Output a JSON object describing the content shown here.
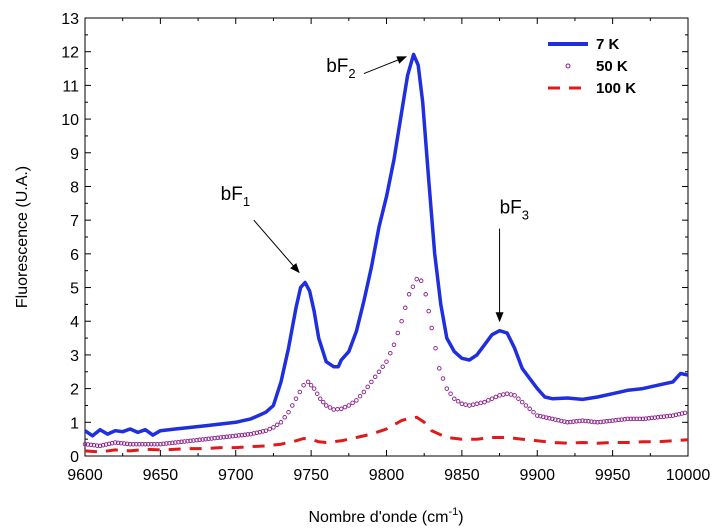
{
  "chart_data": {
    "type": "line",
    "title": "",
    "xlabel": "Nombre d'onde (cm",
    "xlabel_sup": "-1",
    "xlabel_end": ")",
    "ylabel": "Fluorescence (U.A.)",
    "xlim": [
      9600,
      10000
    ],
    "ylim": [
      0,
      13
    ],
    "x_ticks": [
      "9600",
      "9650",
      "9700",
      "9750",
      "9800",
      "9850",
      "9900",
      "9950",
      "10000"
    ],
    "y_ticks": [
      "0",
      "1",
      "2",
      "3",
      "4",
      "5",
      "6",
      "7",
      "8",
      "9",
      "10",
      "11",
      "12",
      "13"
    ],
    "grid": false,
    "legend_position": "top-right",
    "series": [
      {
        "name": "7 K",
        "style": "solid",
        "color": "#1f2fe0",
        "points": [
          [
            9600,
            0.75
          ],
          [
            9605,
            0.6
          ],
          [
            9610,
            0.78
          ],
          [
            9615,
            0.65
          ],
          [
            9620,
            0.75
          ],
          [
            9625,
            0.72
          ],
          [
            9630,
            0.8
          ],
          [
            9635,
            0.7
          ],
          [
            9640,
            0.78
          ],
          [
            9645,
            0.62
          ],
          [
            9650,
            0.75
          ],
          [
            9660,
            0.8
          ],
          [
            9670,
            0.85
          ],
          [
            9680,
            0.9
          ],
          [
            9690,
            0.95
          ],
          [
            9700,
            1.0
          ],
          [
            9705,
            1.05
          ],
          [
            9710,
            1.1
          ],
          [
            9715,
            1.2
          ],
          [
            9720,
            1.3
          ],
          [
            9725,
            1.5
          ],
          [
            9730,
            2.2
          ],
          [
            9735,
            3.2
          ],
          [
            9740,
            4.4
          ],
          [
            9743,
            5.0
          ],
          [
            9746,
            5.15
          ],
          [
            9749,
            4.9
          ],
          [
            9752,
            4.3
          ],
          [
            9755,
            3.5
          ],
          [
            9760,
            2.8
          ],
          [
            9765,
            2.65
          ],
          [
            9768,
            2.65
          ],
          [
            9770,
            2.85
          ],
          [
            9775,
            3.1
          ],
          [
            9780,
            3.7
          ],
          [
            9785,
            4.6
          ],
          [
            9790,
            5.6
          ],
          [
            9795,
            6.8
          ],
          [
            9800,
            7.7
          ],
          [
            9805,
            8.8
          ],
          [
            9810,
            10.2
          ],
          [
            9814,
            11.3
          ],
          [
            9818,
            11.92
          ],
          [
            9821,
            11.6
          ],
          [
            9824,
            10.5
          ],
          [
            9828,
            8.2
          ],
          [
            9832,
            6.0
          ],
          [
            9836,
            4.5
          ],
          [
            9840,
            3.5
          ],
          [
            9845,
            3.1
          ],
          [
            9850,
            2.9
          ],
          [
            9855,
            2.85
          ],
          [
            9860,
            3.0
          ],
          [
            9865,
            3.3
          ],
          [
            9870,
            3.6
          ],
          [
            9875,
            3.72
          ],
          [
            9880,
            3.65
          ],
          [
            9885,
            3.2
          ],
          [
            9890,
            2.6
          ],
          [
            9895,
            2.3
          ],
          [
            9900,
            2.0
          ],
          [
            9905,
            1.75
          ],
          [
            9910,
            1.7
          ],
          [
            9920,
            1.72
          ],
          [
            9930,
            1.68
          ],
          [
            9940,
            1.75
          ],
          [
            9950,
            1.85
          ],
          [
            9960,
            1.95
          ],
          [
            9970,
            2.0
          ],
          [
            9980,
            2.1
          ],
          [
            9990,
            2.2
          ],
          [
            9995,
            2.45
          ],
          [
            10000,
            2.4
          ]
        ]
      },
      {
        "name": "50 K",
        "style": "circles",
        "color": "#8b1e8b",
        "points": [
          [
            9600,
            0.35
          ],
          [
            9610,
            0.3
          ],
          [
            9620,
            0.4
          ],
          [
            9630,
            0.35
          ],
          [
            9640,
            0.35
          ],
          [
            9650,
            0.35
          ],
          [
            9660,
            0.4
          ],
          [
            9670,
            0.45
          ],
          [
            9680,
            0.5
          ],
          [
            9690,
            0.55
          ],
          [
            9700,
            0.6
          ],
          [
            9710,
            0.65
          ],
          [
            9720,
            0.75
          ],
          [
            9725,
            0.85
          ],
          [
            9730,
            1.0
          ],
          [
            9735,
            1.3
          ],
          [
            9740,
            1.7
          ],
          [
            9745,
            2.1
          ],
          [
            9748,
            2.2
          ],
          [
            9752,
            2.0
          ],
          [
            9756,
            1.7
          ],
          [
            9760,
            1.5
          ],
          [
            9765,
            1.38
          ],
          [
            9770,
            1.4
          ],
          [
            9775,
            1.5
          ],
          [
            9780,
            1.65
          ],
          [
            9785,
            1.9
          ],
          [
            9790,
            2.2
          ],
          [
            9795,
            2.5
          ],
          [
            9800,
            2.8
          ],
          [
            9805,
            3.3
          ],
          [
            9810,
            4.0
          ],
          [
            9815,
            4.8
          ],
          [
            9820,
            5.25
          ],
          [
            9823,
            5.2
          ],
          [
            9826,
            4.8
          ],
          [
            9830,
            3.8
          ],
          [
            9835,
            2.6
          ],
          [
            9840,
            2.0
          ],
          [
            9845,
            1.7
          ],
          [
            9850,
            1.55
          ],
          [
            9855,
            1.5
          ],
          [
            9860,
            1.55
          ],
          [
            9865,
            1.6
          ],
          [
            9870,
            1.7
          ],
          [
            9875,
            1.8
          ],
          [
            9880,
            1.85
          ],
          [
            9885,
            1.8
          ],
          [
            9890,
            1.6
          ],
          [
            9895,
            1.4
          ],
          [
            9900,
            1.2
          ],
          [
            9910,
            1.1
          ],
          [
            9920,
            1.0
          ],
          [
            9930,
            1.05
          ],
          [
            9940,
            1.0
          ],
          [
            9950,
            1.05
          ],
          [
            9960,
            1.1
          ],
          [
            9970,
            1.1
          ],
          [
            9980,
            1.15
          ],
          [
            9990,
            1.2
          ],
          [
            10000,
            1.3
          ]
        ]
      },
      {
        "name": "100 K",
        "style": "dashed",
        "color": "#e01a1a",
        "points": [
          [
            9600,
            0.15
          ],
          [
            9610,
            0.12
          ],
          [
            9620,
            0.18
          ],
          [
            9630,
            0.15
          ],
          [
            9640,
            0.2
          ],
          [
            9650,
            0.18
          ],
          [
            9660,
            0.2
          ],
          [
            9670,
            0.22
          ],
          [
            9680,
            0.22
          ],
          [
            9690,
            0.25
          ],
          [
            9700,
            0.25
          ],
          [
            9710,
            0.28
          ],
          [
            9720,
            0.3
          ],
          [
            9730,
            0.35
          ],
          [
            9740,
            0.45
          ],
          [
            9745,
            0.52
          ],
          [
            9750,
            0.5
          ],
          [
            9755,
            0.42
          ],
          [
            9760,
            0.4
          ],
          [
            9770,
            0.45
          ],
          [
            9780,
            0.55
          ],
          [
            9790,
            0.65
          ],
          [
            9800,
            0.8
          ],
          [
            9810,
            1.05
          ],
          [
            9815,
            1.12
          ],
          [
            9820,
            1.15
          ],
          [
            9825,
            1.0
          ],
          [
            9830,
            0.75
          ],
          [
            9840,
            0.55
          ],
          [
            9850,
            0.5
          ],
          [
            9860,
            0.5
          ],
          [
            9870,
            0.55
          ],
          [
            9880,
            0.55
          ],
          [
            9890,
            0.5
          ],
          [
            9900,
            0.45
          ],
          [
            9910,
            0.4
          ],
          [
            9920,
            0.38
          ],
          [
            9930,
            0.4
          ],
          [
            9940,
            0.38
          ],
          [
            9950,
            0.4
          ],
          [
            9960,
            0.4
          ],
          [
            9970,
            0.42
          ],
          [
            9980,
            0.42
          ],
          [
            9990,
            0.45
          ],
          [
            10000,
            0.48
          ]
        ]
      }
    ],
    "annotations": [
      {
        "label": "bF",
        "sub": "1",
        "text_at": [
          9690,
          7.6
        ],
        "arrow_from": [
          9712,
          7.0
        ],
        "arrow_to": [
          9742,
          5.45
        ]
      },
      {
        "label": "bF",
        "sub": "2",
        "text_at": [
          9760,
          11.4
        ],
        "arrow_from": [
          9785,
          11.35
        ],
        "arrow_to": [
          9813,
          11.85
        ]
      },
      {
        "label": "bF",
        "sub": "3",
        "text_at": [
          9875,
          7.2
        ],
        "arrow_from": [
          9875,
          6.75
        ],
        "arrow_to": [
          9875,
          4.0
        ]
      }
    ]
  }
}
